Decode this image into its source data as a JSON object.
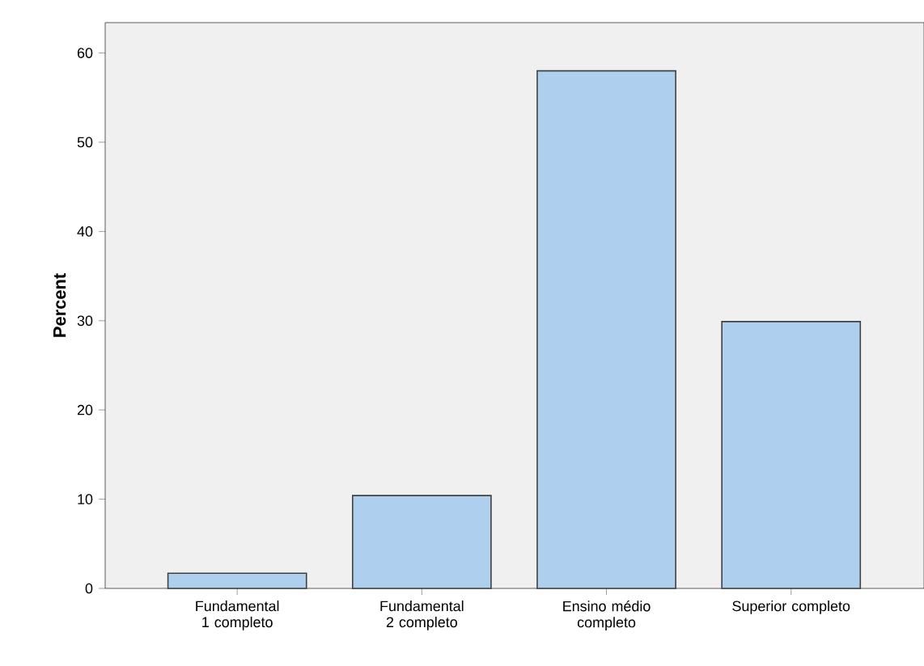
{
  "chart_data": {
    "type": "bar",
    "ylabel": "Percent",
    "categories": [
      "Fundamental 1 completo",
      "Fundamental 2 completo",
      "Ensino médio completo",
      "Superior completo"
    ],
    "values": [
      1.7,
      10.4,
      58.0,
      29.9
    ],
    "color": "#aed0ee",
    "ylim": [
      0,
      63.4
    ],
    "yticks": [
      0,
      10,
      20,
      30,
      40,
      50,
      60
    ],
    "grid": false
  }
}
